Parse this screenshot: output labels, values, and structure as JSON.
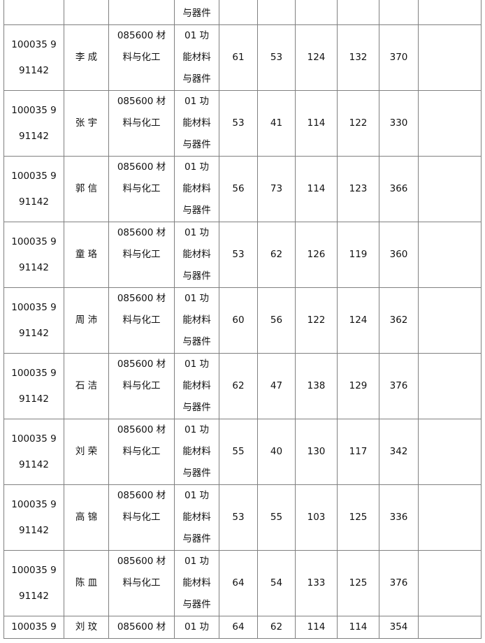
{
  "top_row": {
    "direction": "与器件"
  },
  "rows": [
    {
      "id": "100035 9\n91142",
      "name": "李  成",
      "major": "085600 材\n料与化工",
      "direction": "01 功\n能材料\n与器件",
      "s1": "61",
      "s2": "53",
      "s3": "124",
      "s4": "132",
      "total": "370",
      "note": ""
    },
    {
      "id": "100035 9\n91142",
      "name": "张  宇",
      "major": "085600 材\n料与化工",
      "direction": "01 功\n能材料\n与器件",
      "s1": "53",
      "s2": "41",
      "s3": "114",
      "s4": "122",
      "total": "330",
      "note": ""
    },
    {
      "id": "100035 9\n91142",
      "name": "郭 信",
      "major": "085600 材\n料与化工",
      "direction": "01 功\n能材料\n与器件",
      "s1": "56",
      "s2": "73",
      "s3": "114",
      "s4": "123",
      "total": "366",
      "note": ""
    },
    {
      "id": "100035 9\n91142",
      "name": "童  珞",
      "major": "085600 材\n料与化工",
      "direction": "01 功\n能材料\n与器件",
      "s1": "53",
      "s2": "62",
      "s3": "126",
      "s4": "119",
      "total": "360",
      "note": ""
    },
    {
      "id": "100035 9\n91142",
      "name": "周 沛",
      "major": "085600 材\n料与化工",
      "direction": "01 功\n能材料\n与器件",
      "s1": "60",
      "s2": "56",
      "s3": "122",
      "s4": "124",
      "total": "362",
      "note": ""
    },
    {
      "id": "100035 9\n91142",
      "name": "石 洁",
      "major": "085600 材\n料与化工",
      "direction": "01 功\n能材料\n与器件",
      "s1": "62",
      "s2": "47",
      "s3": "138",
      "s4": "129",
      "total": "376",
      "note": ""
    },
    {
      "id": "100035 9\n91142",
      "name": "刘  荣",
      "major": "085600 材\n料与化工",
      "direction": "01 功\n能材料\n与器件",
      "s1": "55",
      "s2": "40",
      "s3": "130",
      "s4": "117",
      "total": "342",
      "note": ""
    },
    {
      "id": "100035 9\n91142",
      "name": "高 锦",
      "major": "085600 材\n料与化工",
      "direction": "01 功\n能材料\n与器件",
      "s1": "53",
      "s2": "55",
      "s3": "103",
      "s4": "125",
      "total": "336",
      "note": ""
    },
    {
      "id": "100035 9\n91142",
      "name": "陈 皿",
      "major": "085600 材\n料与化工",
      "direction": "01 功\n能材料\n与器件",
      "s1": "64",
      "s2": "54",
      "s3": "133",
      "s4": "125",
      "total": "376",
      "note": ""
    }
  ],
  "last_row": {
    "id": "100035 9",
    "name": "刘  玟",
    "major": "085600 材",
    "direction": "01 功",
    "s1": "64",
    "s2": "62",
    "s3": "114",
    "s4": "114",
    "total": "354",
    "note": ""
  }
}
